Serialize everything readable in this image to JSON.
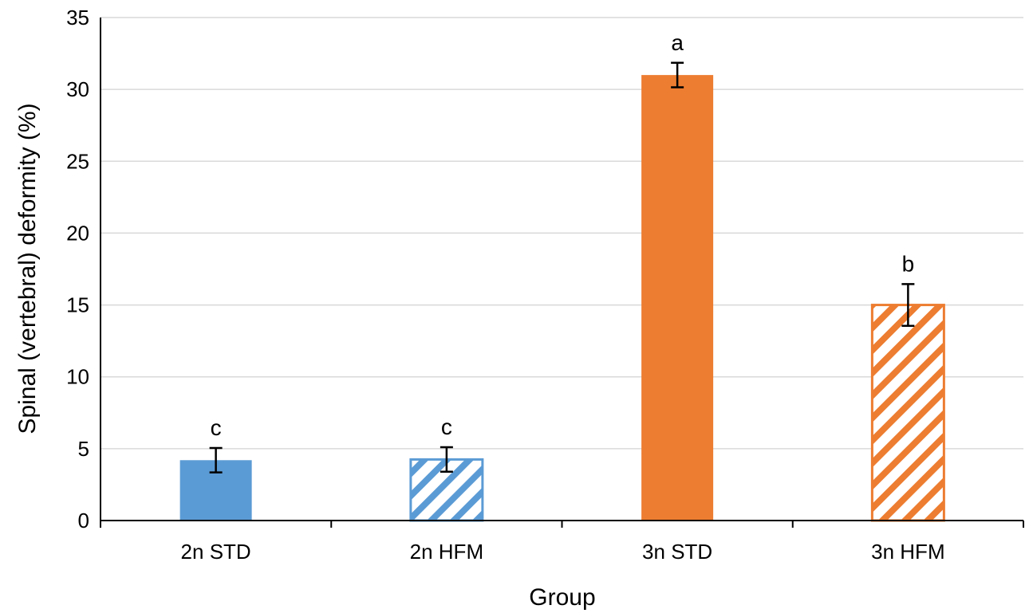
{
  "chart_data": {
    "type": "bar",
    "categories": [
      "2n STD",
      "2n HFM",
      "3n STD",
      "3n HFM"
    ],
    "values": [
      4.2,
      4.25,
      31.0,
      15.0
    ],
    "errors": [
      0.85,
      0.85,
      0.85,
      1.45
    ],
    "significance": [
      "c",
      "c",
      "a",
      "b"
    ],
    "fills": [
      "solid",
      "hatched",
      "solid",
      "hatched"
    ],
    "colors": [
      "#5b9bd5",
      "#5b9bd5",
      "#ed7d31",
      "#ed7d31"
    ],
    "xlabel": "Group",
    "ylabel": "Spinal (vertebral) deformity (%)",
    "ylim": [
      0,
      35
    ],
    "yticks": [
      0,
      5,
      10,
      15,
      20,
      25,
      30,
      35
    ],
    "grid": true,
    "legend": "none"
  }
}
